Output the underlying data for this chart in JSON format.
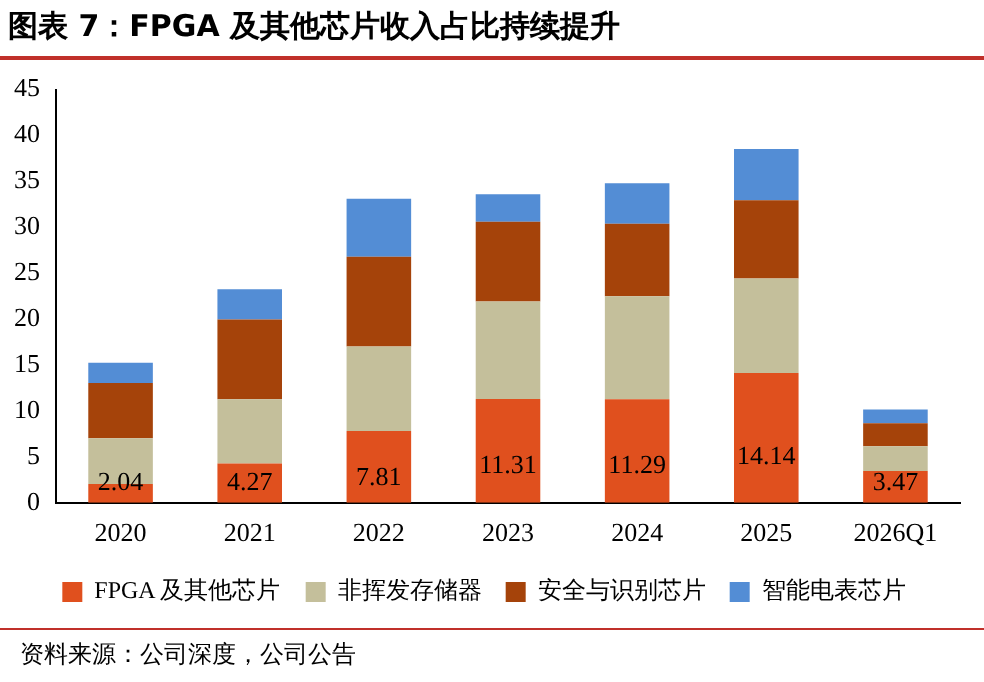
{
  "chart_data": {
    "type": "bar",
    "stacked": true,
    "title": "图表 7：FPGA 及其他芯片收入占比持续提升",
    "categories": [
      "2020",
      "2021",
      "2022",
      "2023",
      "2024",
      "2025",
      "2026Q1"
    ],
    "series": [
      {
        "name": "FPGA 及其他芯片",
        "color": "#e0501e",
        "values": [
          2.04,
          4.27,
          7.81,
          11.31,
          11.29,
          14.14,
          3.47
        ],
        "value_labels": [
          "2.04",
          "4.27",
          "7.81",
          "11.31",
          "11.29",
          "14.14",
          "3.47"
        ]
      },
      {
        "name": "非挥发存储器",
        "color": "#c4bf9b",
        "values": [
          5.0,
          7.0,
          9.2,
          10.6,
          11.2,
          10.3,
          2.7
        ]
      },
      {
        "name": "安全与识别芯片",
        "color": "#a5430a",
        "values": [
          6.0,
          8.7,
          9.8,
          8.7,
          7.9,
          8.5,
          2.5
        ]
      },
      {
        "name": "智能电表芯片",
        "color": "#538dd5",
        "values": [
          2.2,
          3.3,
          6.3,
          3.0,
          4.4,
          5.6,
          1.5
        ]
      }
    ],
    "ylim": [
      0,
      45
    ],
    "yticks": [
      0,
      5,
      10,
      15,
      20,
      25,
      30,
      35,
      40,
      45
    ],
    "grid": false,
    "legend": "bottom",
    "annotations": [
      "资料来源：公司深度，公司公告"
    ]
  }
}
